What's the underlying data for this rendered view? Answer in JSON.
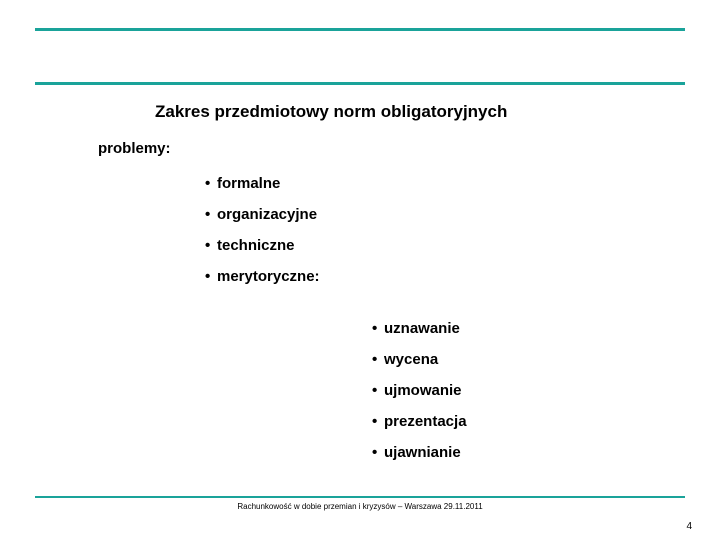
{
  "colors": {
    "rule": "#1aa39a",
    "text": "#000000",
    "background": "#ffffff"
  },
  "title": "Zakres przedmiotowy norm obligatoryjnych",
  "subtitle": "problemy:",
  "list1": [
    "formalne",
    "organizacyjne",
    "techniczne",
    "merytoryczne:"
  ],
  "list2": [
    "uznawanie",
    "wycena",
    "ujmowanie",
    "prezentacja",
    "ujawnianie"
  ],
  "footer": "Rachunkowość w dobie przemian i kryzysów – Warszawa 29.11.2011",
  "page_number": "4",
  "bullet_char": "•"
}
